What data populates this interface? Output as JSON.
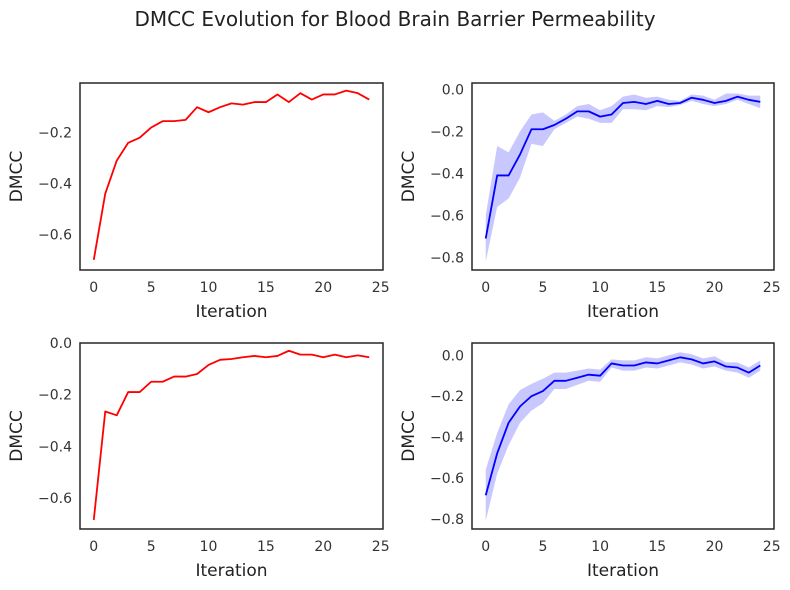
{
  "figure": {
    "title": "DMCC Evolution for Blood Brain Barrier Permeability"
  },
  "chart_data": [
    {
      "type": "line",
      "xlabel": "Iteration",
      "ylabel": "DMCC",
      "xlim": [
        -1.2,
        25.2
      ],
      "ylim": [
        -0.74,
        -0.005
      ],
      "xticks": [
        0,
        5,
        10,
        15,
        20,
        25
      ],
      "yticks": [
        -0.6,
        -0.4,
        -0.2
      ],
      "line_color": "#ff0000",
      "band": false,
      "grid": false,
      "x": [
        0,
        1,
        2,
        3,
        4,
        5,
        6,
        7,
        8,
        9,
        10,
        11,
        12,
        13,
        14,
        15,
        16,
        17,
        18,
        19,
        20,
        21,
        22,
        23,
        24
      ],
      "y": [
        -0.7,
        -0.44,
        -0.31,
        -0.24,
        -0.22,
        -0.18,
        -0.155,
        -0.155,
        -0.15,
        -0.1,
        -0.12,
        -0.1,
        -0.085,
        -0.09,
        -0.08,
        -0.08,
        -0.05,
        -0.08,
        -0.045,
        -0.07,
        -0.05,
        -0.05,
        -0.035,
        -0.045,
        -0.07
      ]
    },
    {
      "type": "line",
      "xlabel": "Iteration",
      "ylabel": "DMCC",
      "xlim": [
        -1.2,
        25.2
      ],
      "ylim": [
        -0.86,
        0.03
      ],
      "xticks": [
        0,
        5,
        10,
        15,
        20,
        25
      ],
      "yticks": [
        -0.8,
        -0.6,
        -0.4,
        -0.2,
        0.0
      ],
      "ytick_labels": [
        "−0.8",
        "−0.6",
        "−0.4",
        "−0.2",
        "0.0"
      ],
      "line_color": "#0000ff",
      "band_color": "#aaaaff",
      "band": true,
      "grid": false,
      "x": [
        0,
        1,
        2,
        3,
        4,
        5,
        6,
        7,
        8,
        9,
        10,
        11,
        12,
        13,
        14,
        15,
        16,
        17,
        18,
        19,
        20,
        21,
        22,
        23,
        24
      ],
      "y": [
        -0.71,
        -0.41,
        -0.41,
        -0.31,
        -0.19,
        -0.19,
        -0.17,
        -0.14,
        -0.105,
        -0.105,
        -0.13,
        -0.12,
        -0.065,
        -0.06,
        -0.07,
        -0.055,
        -0.07,
        -0.065,
        -0.04,
        -0.05,
        -0.065,
        -0.055,
        -0.035,
        -0.05,
        -0.06
      ],
      "y_lower": [
        -0.82,
        -0.56,
        -0.52,
        -0.42,
        -0.26,
        -0.27,
        -0.19,
        -0.16,
        -0.13,
        -0.14,
        -0.16,
        -0.16,
        -0.095,
        -0.095,
        -0.1,
        -0.08,
        -0.085,
        -0.075,
        -0.055,
        -0.07,
        -0.08,
        -0.07,
        -0.05,
        -0.07,
        -0.09
      ],
      "y_upper": [
        -0.6,
        -0.27,
        -0.3,
        -0.2,
        -0.12,
        -0.11,
        -0.15,
        -0.12,
        -0.08,
        -0.07,
        -0.1,
        -0.08,
        -0.035,
        -0.025,
        -0.04,
        -0.035,
        -0.05,
        -0.055,
        -0.025,
        -0.03,
        -0.05,
        -0.02,
        -0.02,
        -0.03,
        -0.03
      ]
    },
    {
      "type": "line",
      "xlabel": "Iteration",
      "ylabel": "DMCC",
      "xlim": [
        -1.2,
        25.2
      ],
      "ylim": [
        -0.72,
        0.0
      ],
      "xticks": [
        0,
        5,
        10,
        15,
        20,
        25
      ],
      "yticks": [
        -0.6,
        -0.4,
        -0.2,
        0.0
      ],
      "ytick_labels": [
        "−0.6",
        "−0.4",
        "−0.2",
        "0.0"
      ],
      "line_color": "#ff0000",
      "band": false,
      "grid": false,
      "x": [
        0,
        1,
        2,
        3,
        4,
        5,
        6,
        7,
        8,
        9,
        10,
        11,
        12,
        13,
        14,
        15,
        16,
        17,
        18,
        19,
        20,
        21,
        22,
        23,
        24
      ],
      "y": [
        -0.685,
        -0.265,
        -0.28,
        -0.19,
        -0.19,
        -0.15,
        -0.15,
        -0.13,
        -0.13,
        -0.12,
        -0.085,
        -0.065,
        -0.062,
        -0.055,
        -0.05,
        -0.055,
        -0.05,
        -0.03,
        -0.045,
        -0.045,
        -0.055,
        -0.045,
        -0.055,
        -0.048,
        -0.055
      ]
    },
    {
      "type": "line",
      "xlabel": "Iteration",
      "ylabel": "DMCC",
      "xlim": [
        -1.2,
        25.2
      ],
      "ylim": [
        -0.85,
        0.06
      ],
      "xticks": [
        0,
        5,
        10,
        15,
        20,
        25
      ],
      "yticks": [
        -0.8,
        -0.6,
        -0.4,
        -0.2,
        0.0
      ],
      "ytick_labels": [
        "−0.8",
        "−0.6",
        "−0.4",
        "−0.2",
        "0.0"
      ],
      "line_color": "#0000ff",
      "band_color": "#aaaaff",
      "band": true,
      "grid": false,
      "x": [
        0,
        1,
        2,
        3,
        4,
        5,
        6,
        7,
        8,
        9,
        10,
        11,
        12,
        13,
        14,
        15,
        16,
        17,
        18,
        19,
        20,
        21,
        22,
        23,
        24
      ],
      "y": [
        -0.685,
        -0.48,
        -0.33,
        -0.25,
        -0.2,
        -0.175,
        -0.125,
        -0.125,
        -0.11,
        -0.095,
        -0.1,
        -0.04,
        -0.05,
        -0.05,
        -0.035,
        -0.04,
        -0.025,
        -0.01,
        -0.02,
        -0.04,
        -0.03,
        -0.055,
        -0.06,
        -0.085,
        -0.05
      ],
      "y_lower": [
        -0.81,
        -0.58,
        -0.44,
        -0.33,
        -0.27,
        -0.235,
        -0.165,
        -0.165,
        -0.145,
        -0.125,
        -0.13,
        -0.06,
        -0.075,
        -0.075,
        -0.06,
        -0.065,
        -0.05,
        -0.035,
        -0.045,
        -0.065,
        -0.055,
        -0.075,
        -0.085,
        -0.11,
        -0.075
      ],
      "y_upper": [
        -0.56,
        -0.38,
        -0.24,
        -0.17,
        -0.14,
        -0.115,
        -0.085,
        -0.085,
        -0.075,
        -0.065,
        -0.07,
        -0.02,
        -0.025,
        -0.025,
        -0.01,
        -0.015,
        0.0,
        0.015,
        0.005,
        -0.015,
        -0.005,
        -0.035,
        -0.035,
        -0.06,
        -0.025
      ]
    }
  ]
}
